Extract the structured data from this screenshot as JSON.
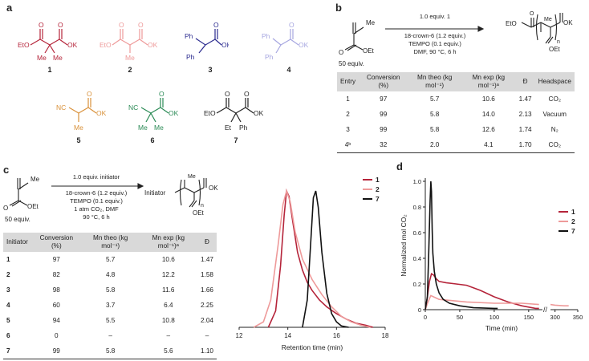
{
  "panel_a": {
    "label": "a",
    "compounds": [
      {
        "number": "1",
        "color": "#b5243a"
      },
      {
        "number": "2",
        "color": "#ee9a9a"
      },
      {
        "number": "3",
        "color": "#2b2b8f"
      },
      {
        "number": "4",
        "color": "#a6a6e0"
      },
      {
        "number": "5",
        "color": "#d9913a"
      },
      {
        "number": "6",
        "color": "#2a8a55"
      },
      {
        "number": "7",
        "color": "#222222"
      }
    ],
    "atoms": {
      "eto": "EtO",
      "ok": "OK",
      "o": "O",
      "me": "Me",
      "ph": "Ph",
      "nc": "NC",
      "et": "Et"
    }
  },
  "panel_b": {
    "label": "b",
    "monomer": {
      "me": "Me",
      "o": "O",
      "oet": "OEt",
      "equiv": "50 equiv."
    },
    "conditions": [
      "1.0 equiv. 1",
      "18-crown-6 (1.2 equiv.)",
      "TEMPO (0.1 equiv.)",
      "DMF, 90 °C, 6 h"
    ],
    "product": {
      "eto": "EtO",
      "ok": "OK",
      "oet": "OEt",
      "me": "Me",
      "n": "n"
    },
    "table": {
      "headers": [
        "Entry",
        "Conversion (%)",
        "Mn theo (kg mol⁻¹)",
        "Mn exp (kg mol⁻¹)ᵃ",
        "Đ",
        "Headspace"
      ],
      "rows": [
        [
          "1",
          "97",
          "5.7",
          "10.6",
          "1.47",
          "CO₂"
        ],
        [
          "2",
          "99",
          "5.8",
          "14.0",
          "2.13",
          "Vacuum"
        ],
        [
          "3",
          "99",
          "5.8",
          "12.6",
          "1.74",
          "N₂"
        ],
        [
          "4ᵇ",
          "32",
          "2.0",
          "4.1",
          "1.70",
          "CO₂"
        ]
      ]
    }
  },
  "panel_c": {
    "label": "c",
    "monomer": {
      "me": "Me",
      "o": "O",
      "oet": "OEt",
      "equiv": "50 equiv."
    },
    "conditions": [
      "1.0 equiv. initiator",
      "18-crown-6 (1.2 equiv.)",
      "TEMPO (0.1 equiv.)",
      "1 atm CO₂, DMF",
      "90 °C, 6 h"
    ],
    "product": {
      "initiator": "Initiator",
      "ok": "OK",
      "oet": "OEt",
      "me": "Me",
      "n": "n"
    },
    "table": {
      "headers": [
        "Initiator",
        "Conversion (%)",
        "Mn theo (kg mol⁻¹)",
        "Mn exp (kg mol⁻¹)ᵃ",
        "Đ"
      ],
      "rows": [
        [
          "1",
          "97",
          "5.7",
          "10.6",
          "1.47"
        ],
        [
          "2",
          "82",
          "4.8",
          "12.2",
          "1.58"
        ],
        [
          "3",
          "98",
          "5.8",
          "11.6",
          "1.66"
        ],
        [
          "4",
          "60",
          "3.7",
          "6.4",
          "2.25"
        ],
        [
          "5",
          "94",
          "5.5",
          "10.8",
          "2.04"
        ],
        [
          "6",
          "0",
          "–",
          "–",
          "–"
        ],
        [
          "7",
          "99",
          "5.8",
          "5.6",
          "1.10"
        ]
      ]
    }
  },
  "chart_data": [
    {
      "type": "line",
      "xlabel": "Retention time (min)",
      "ylabel": "",
      "xlim": [
        12,
        18
      ],
      "xticks": [
        "12",
        "14",
        "16",
        "18"
      ],
      "legend_position": "top-right",
      "series": [
        {
          "name": "1",
          "color": "#b5243a",
          "x": [
            13.2,
            13.5,
            13.7,
            13.85,
            13.95,
            14.05,
            14.2,
            14.4,
            14.6,
            14.8,
            15.0,
            15.3,
            15.6,
            16.0,
            16.4,
            16.8,
            17.2,
            17.5
          ],
          "y": [
            0.0,
            0.12,
            0.45,
            0.82,
            1.0,
            0.96,
            0.78,
            0.55,
            0.42,
            0.33,
            0.27,
            0.2,
            0.15,
            0.1,
            0.06,
            0.03,
            0.015,
            0.0
          ]
        },
        {
          "name": "2",
          "color": "#ee9a9a",
          "x": [
            12.6,
            13.0,
            13.3,
            13.6,
            13.8,
            13.95,
            14.1,
            14.3,
            14.6,
            15.0,
            15.4,
            15.8,
            16.2,
            16.6,
            17.0,
            17.4
          ],
          "y": [
            0.0,
            0.04,
            0.2,
            0.6,
            0.9,
            1.0,
            0.92,
            0.7,
            0.5,
            0.35,
            0.24,
            0.15,
            0.08,
            0.04,
            0.015,
            0.0
          ]
        },
        {
          "name": "7",
          "color": "#111111",
          "x": [
            14.6,
            14.8,
            14.95,
            15.05,
            15.15,
            15.25,
            15.4,
            15.6,
            15.8,
            16.0,
            16.2,
            16.5
          ],
          "y": [
            0.0,
            0.2,
            0.65,
            0.95,
            1.0,
            0.88,
            0.55,
            0.25,
            0.1,
            0.04,
            0.01,
            0.0
          ]
        }
      ]
    },
    {
      "type": "line",
      "xlabel": "Time (min)",
      "ylabel": "Normalized mol CO₂",
      "ylim": [
        0,
        1.0
      ],
      "yticks": [
        "0",
        "0.2",
        "0.4",
        "0.6",
        "0.8",
        "1.0"
      ],
      "xticks": [
        "0",
        "50",
        "100",
        "150",
        "300",
        "350"
      ],
      "axis_break": [
        170,
        290
      ],
      "legend_position": "top-right",
      "series": [
        {
          "name": "1",
          "color": "#b5243a",
          "x": [
            0,
            3,
            6,
            9,
            12,
            16,
            20,
            30,
            45,
            60,
            80,
            100,
            120,
            140,
            160,
            165
          ],
          "y": [
            0.0,
            0.1,
            0.22,
            0.28,
            0.27,
            0.24,
            0.22,
            0.21,
            0.2,
            0.19,
            0.15,
            0.1,
            0.06,
            0.03,
            0.01,
            0.01
          ]
        },
        {
          "name": "2",
          "color": "#ee9a9a",
          "x": [
            0,
            4,
            8,
            12,
            20,
            40,
            60,
            100,
            140,
            165,
            290,
            300,
            320,
            330
          ],
          "y": [
            0.0,
            0.06,
            0.11,
            0.1,
            0.08,
            0.07,
            0.06,
            0.05,
            0.05,
            0.04,
            0.04,
            0.035,
            0.03,
            0.03
          ]
        },
        {
          "name": "7",
          "color": "#111111",
          "x": [
            0,
            3,
            5,
            7,
            8,
            9,
            10,
            11,
            13,
            16,
            20,
            26,
            35,
            50,
            70,
            100,
            105
          ],
          "y": [
            0.0,
            0.1,
            0.45,
            0.85,
            1.0,
            0.92,
            0.62,
            0.44,
            0.3,
            0.2,
            0.13,
            0.08,
            0.05,
            0.03,
            0.015,
            0.01,
            0.01
          ]
        }
      ]
    }
  ]
}
